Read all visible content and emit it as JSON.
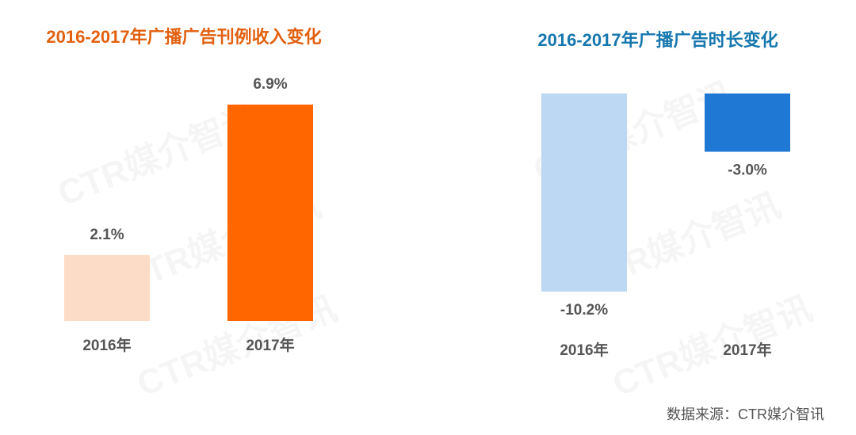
{
  "chart_data": [
    {
      "type": "bar",
      "title": "2016-2017年广播广告刊例收入变化",
      "title_color": "#e2600f",
      "categories": [
        "2016年",
        "2017年"
      ],
      "values": [
        2.1,
        6.9
      ],
      "value_labels": [
        "2.1%",
        "6.9%"
      ],
      "colors": [
        "#fcdcc6",
        "#ff6600"
      ]
    },
    {
      "type": "bar",
      "title": "2016-2017年广播广告时长变化",
      "title_color": "#1677ae",
      "categories": [
        "2016年",
        "2017年"
      ],
      "values": [
        -10.2,
        -3.0
      ],
      "value_labels": [
        "-10.2%",
        "-3.0%"
      ],
      "colors": [
        "#bcd8f3",
        "#1f78d3"
      ]
    }
  ],
  "source": "数据来源：CTR媒介智讯",
  "watermark": "CTR媒介智讯"
}
